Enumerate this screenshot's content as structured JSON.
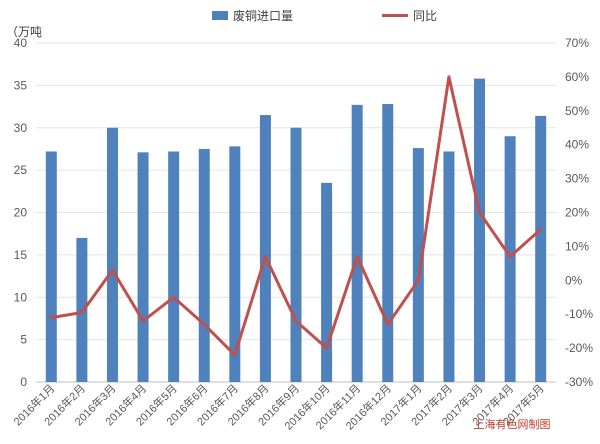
{
  "chart_data": {
    "type": "bar",
    "categories": [
      "2016年1月",
      "2016年2月",
      "2016年3月",
      "2016年4月",
      "2016年5月",
      "2016年6月",
      "2016年7月",
      "2016年8月",
      "2016年9月",
      "2016年10月",
      "2016年11月",
      "2016年12月",
      "2017年1月",
      "2017年2月",
      "2017年3月",
      "2017年4月",
      "2017年5月"
    ],
    "series": [
      {
        "name": "废铜进口量",
        "type": "bar",
        "axis": "left",
        "color": "#4f81bd",
        "values": [
          27.2,
          17.0,
          30.0,
          27.1,
          27.2,
          27.5,
          27.8,
          31.5,
          30.0,
          23.5,
          32.7,
          32.8,
          27.6,
          27.2,
          35.8,
          29.0,
          31.4
        ]
      },
      {
        "name": "同比",
        "type": "line",
        "axis": "right",
        "color": "#c0504d",
        "values": [
          -11,
          -9.5,
          3,
          -12,
          -5,
          -13,
          -22,
          7,
          -12,
          -20,
          7,
          -13,
          0,
          60,
          20,
          7,
          15
        ]
      }
    ],
    "y_left": {
      "unit_label": "（万吨",
      "min": 0,
      "max": 40,
      "step": 5,
      "ticks": [
        "0",
        "5",
        "10",
        "15",
        "20",
        "25",
        "30",
        "35",
        "40"
      ]
    },
    "y_right": {
      "min": -30,
      "max": 70,
      "step": 10,
      "ticks": [
        "-30%",
        "-20%",
        "-10%",
        "0%",
        "10%",
        "20%",
        "30%",
        "40%",
        "50%",
        "60%",
        "70%"
      ]
    },
    "grid": true,
    "legend_position": "top",
    "credit": "上海有色网制图"
  }
}
